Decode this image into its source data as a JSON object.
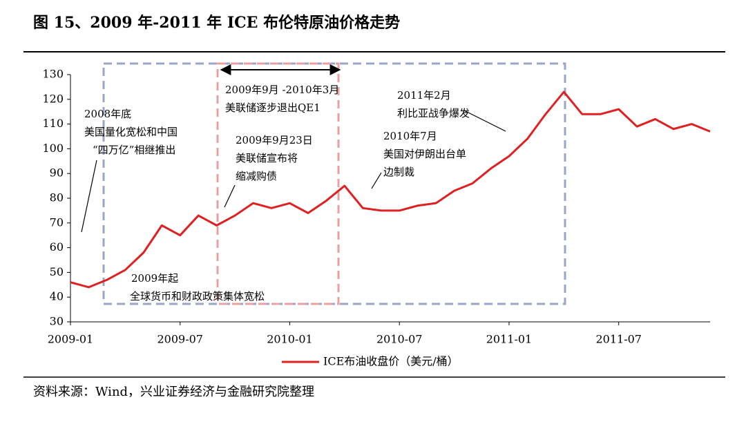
{
  "chart_data": {
    "type": "line",
    "title": "图 15、2009 年-2011 年 ICE 布伦特原油价格走势",
    "source": "资料来源：Wind，兴业证券经济与金融研究院整理",
    "x": [
      "2009-01",
      "2009-02",
      "2009-03",
      "2009-04",
      "2009-05",
      "2009-06",
      "2009-07",
      "2009-08",
      "2009-09",
      "2009-10",
      "2009-11",
      "2009-12",
      "2010-01",
      "2010-02",
      "2010-03",
      "2010-04",
      "2010-05",
      "2010-06",
      "2010-07",
      "2010-08",
      "2010-09",
      "2010-10",
      "2010-11",
      "2010-12",
      "2011-01",
      "2011-02",
      "2011-03",
      "2011-04",
      "2011-05",
      "2011-06",
      "2011-07",
      "2011-08",
      "2011-09",
      "2011-10",
      "2011-11",
      "2011-12"
    ],
    "series": [
      {
        "name": "ICE布油收盘价（美元/桶）",
        "color": "#e02020",
        "values": [
          46,
          44,
          47,
          51,
          58,
          69,
          65,
          73,
          69,
          73,
          78,
          76,
          78,
          74,
          79,
          85,
          76,
          75,
          75,
          77,
          78,
          83,
          86,
          92,
          97,
          104,
          114,
          123,
          114,
          114,
          116,
          109,
          112,
          108,
          110,
          107
        ]
      }
    ],
    "xlim": [
      "2009-01",
      "2011-12"
    ],
    "xticks": [
      "2009-01",
      "2009-07",
      "2010-01",
      "2010-07",
      "2011-01",
      "2011-07"
    ],
    "ylim": [
      30,
      130
    ],
    "yticks": [
      30,
      40,
      50,
      60,
      70,
      80,
      90,
      100,
      110,
      120,
      130
    ],
    "annotations": [
      [
        "2008年底",
        "美国量化宽松和中国",
        "“四万亿”相继推出"
      ],
      [
        "2009年9月 -2010年3月",
        "美联储逐步退出QE1"
      ],
      [
        "2009年9月23日",
        "美联储宣布将",
        "缩减购债"
      ],
      [
        "2011年2月",
        "利比亚战争爆发"
      ],
      [
        "2010年7月",
        "美国对伊朗出台单",
        "边制裁"
      ],
      [
        "2009年起",
        "全球货币和财政政策集体宽松"
      ]
    ]
  }
}
